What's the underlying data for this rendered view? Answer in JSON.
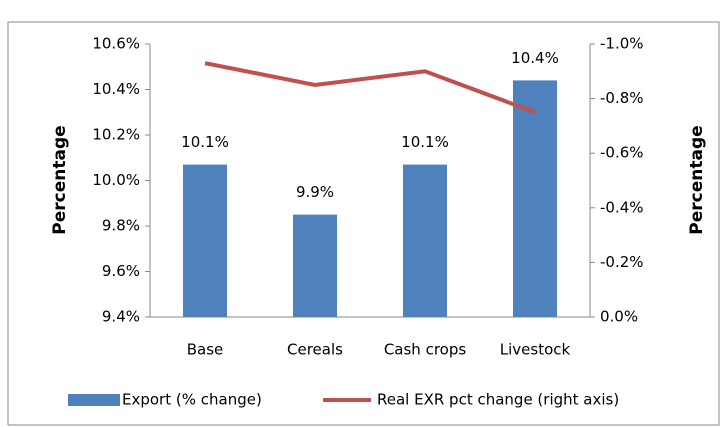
{
  "chart_data": {
    "type": "bar",
    "categories": [
      "Base",
      "Cereals",
      "Cash crops",
      "Livestock"
    ],
    "series": [
      {
        "name": "Export (% change)",
        "color": "#4f81bd",
        "values": [
          10.07,
          9.85,
          10.07,
          10.44
        ],
        "value_labels": [
          "10.1%",
          "9.9%",
          "10.1%",
          "10.4%"
        ]
      },
      {
        "name": "Real EXR pct change (right axis)",
        "color": "#c0504d",
        "axis": "y2",
        "type": "line",
        "values": [
          -0.93,
          -0.85,
          -0.9,
          -0.75
        ]
      }
    ],
    "ylabel": "Percentage",
    "y2label": "Percentage",
    "ylim": [
      9.4,
      10.6
    ],
    "yticks": [
      {
        "value": 9.4,
        "label": "9.4%"
      },
      {
        "value": 9.6,
        "label": "9.6%"
      },
      {
        "value": 9.8,
        "label": "9.8%"
      },
      {
        "value": 10.0,
        "label": "10.0%"
      },
      {
        "value": 10.2,
        "label": "10.2%"
      },
      {
        "value": 10.4,
        "label": "10.4%"
      },
      {
        "value": 10.6,
        "label": "10.6%"
      }
    ],
    "y2lim": [
      0,
      -1.0
    ],
    "y2ticks": [
      {
        "value": 0,
        "label": "0.0%"
      },
      {
        "value": -0.2,
        "label": "-0.2%"
      },
      {
        "value": -0.4,
        "label": "-0.4%"
      },
      {
        "value": -0.6,
        "label": "-0.6%"
      },
      {
        "value": -0.8,
        "label": "-0.8%"
      },
      {
        "value": -1.0,
        "label": "-1.0%"
      }
    ],
    "legend": "bottom"
  }
}
